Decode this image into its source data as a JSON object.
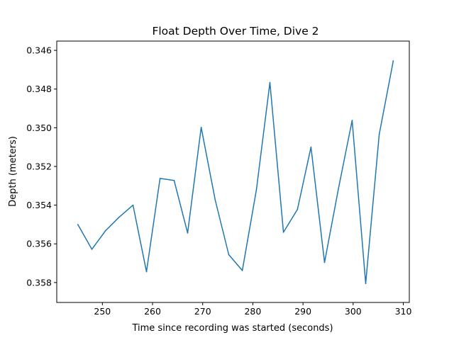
{
  "chart_data": {
    "type": "line",
    "title": "Float Depth Over Time, Dive 2",
    "xlabel": "Time since recording was started (seconds)",
    "ylabel": "Depth (meters)",
    "xlim": [
      240.9,
      311.2
    ],
    "ylim": [
      0.35903,
      0.34552
    ],
    "y_inverted": true,
    "x_ticks": [
      250,
      260,
      270,
      280,
      290,
      300,
      310
    ],
    "y_ticks": [
      0.346,
      0.348,
      0.35,
      0.352,
      0.354,
      0.356,
      0.358
    ],
    "x_tick_labels": [
      "250",
      "260",
      "270",
      "280",
      "290",
      "300",
      "310"
    ],
    "y_tick_labels": [
      "0.346",
      "0.348",
      "0.350",
      "0.352",
      "0.354",
      "0.356",
      "0.358"
    ],
    "grid": false,
    "legend": "none",
    "series": [
      {
        "color": "#1f77b4",
        "x": [
          245.1,
          247.9,
          250.6,
          253.3,
          256.1,
          258.8,
          261.5,
          264.3,
          267.0,
          269.7,
          272.5,
          275.2,
          277.9,
          280.7,
          283.4,
          286.1,
          288.9,
          291.6,
          294.3,
          297.1,
          299.8,
          302.5,
          305.2,
          308.0
        ],
        "y": [
          0.355,
          0.35628,
          0.35533,
          0.35463,
          0.354,
          0.35744,
          0.35262,
          0.35272,
          0.35544,
          0.34998,
          0.35374,
          0.35656,
          0.35738,
          0.35322,
          0.34766,
          0.3554,
          0.35422,
          0.351,
          0.35696,
          0.35311,
          0.34962,
          0.35805,
          0.35034,
          0.34654
        ]
      }
    ]
  }
}
